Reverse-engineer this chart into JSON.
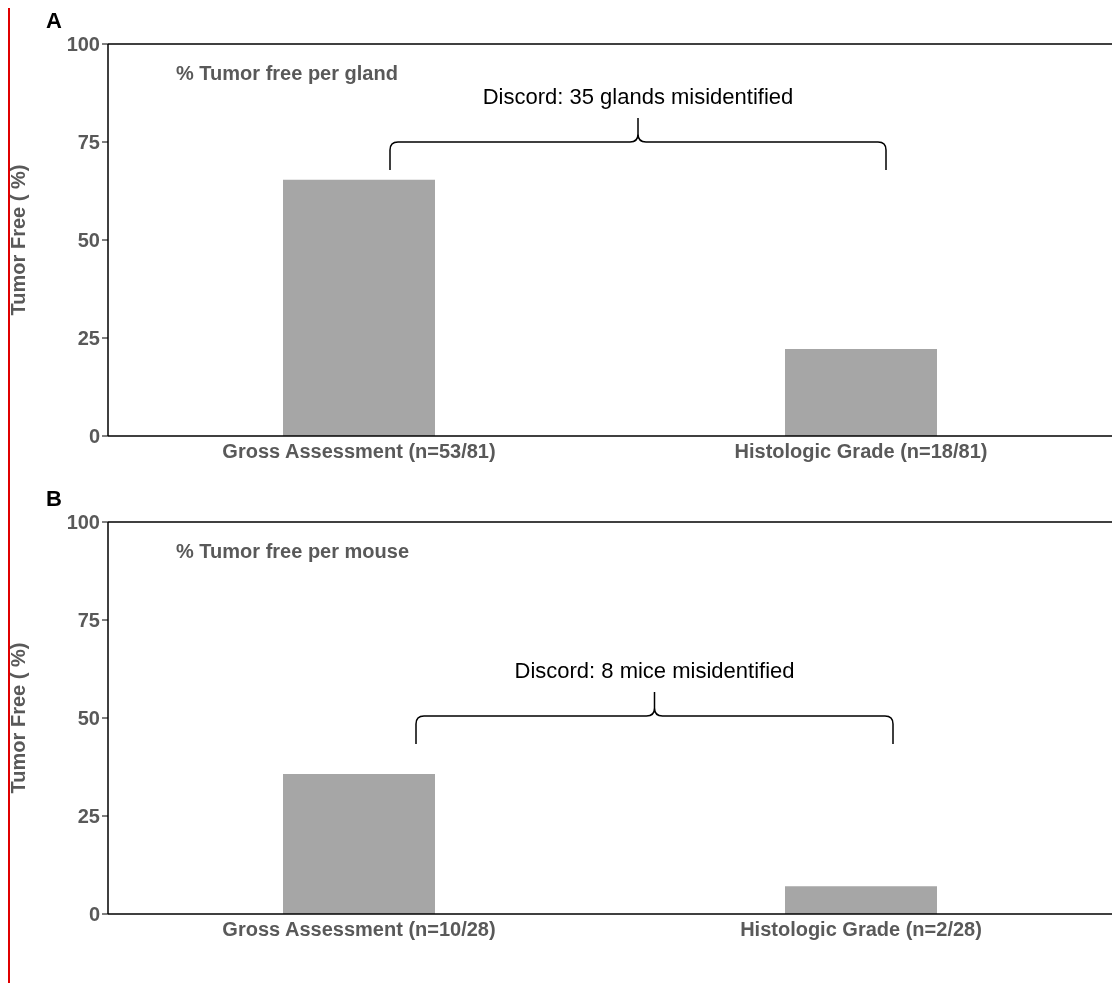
{
  "chart_data": [
    {
      "type": "bar",
      "title": "A",
      "subtitle": "% Tumor free per gland",
      "ylabel": "Tumor Free ( %)",
      "categories": [
        "Gross Assessment (n=53/81)",
        "Histologic Grade (n=18/81)"
      ],
      "values": [
        65.4,
        22.2
      ],
      "color": "#a6a6a6",
      "ylim": [
        0,
        100
      ],
      "yticks": [
        0,
        25,
        50,
        75,
        100
      ],
      "grid": false,
      "legend": false,
      "annotations": [
        "Discord: 35 glands misidentified"
      ]
    },
    {
      "type": "bar",
      "title": "B",
      "subtitle": "% Tumor free per mouse",
      "ylabel": "Tumor Free ( %)",
      "categories": [
        "Gross Assessment (n=10/28)",
        "Histologic Grade (n=2/28)"
      ],
      "values": [
        35.7,
        7.1
      ],
      "color": "#a6a6a6",
      "ylim": [
        0,
        100
      ],
      "yticks": [
        0,
        25,
        50,
        75,
        100
      ],
      "grid": false,
      "legend": false,
      "annotations": [
        "Discord: 8 mice misidentified"
      ]
    }
  ]
}
